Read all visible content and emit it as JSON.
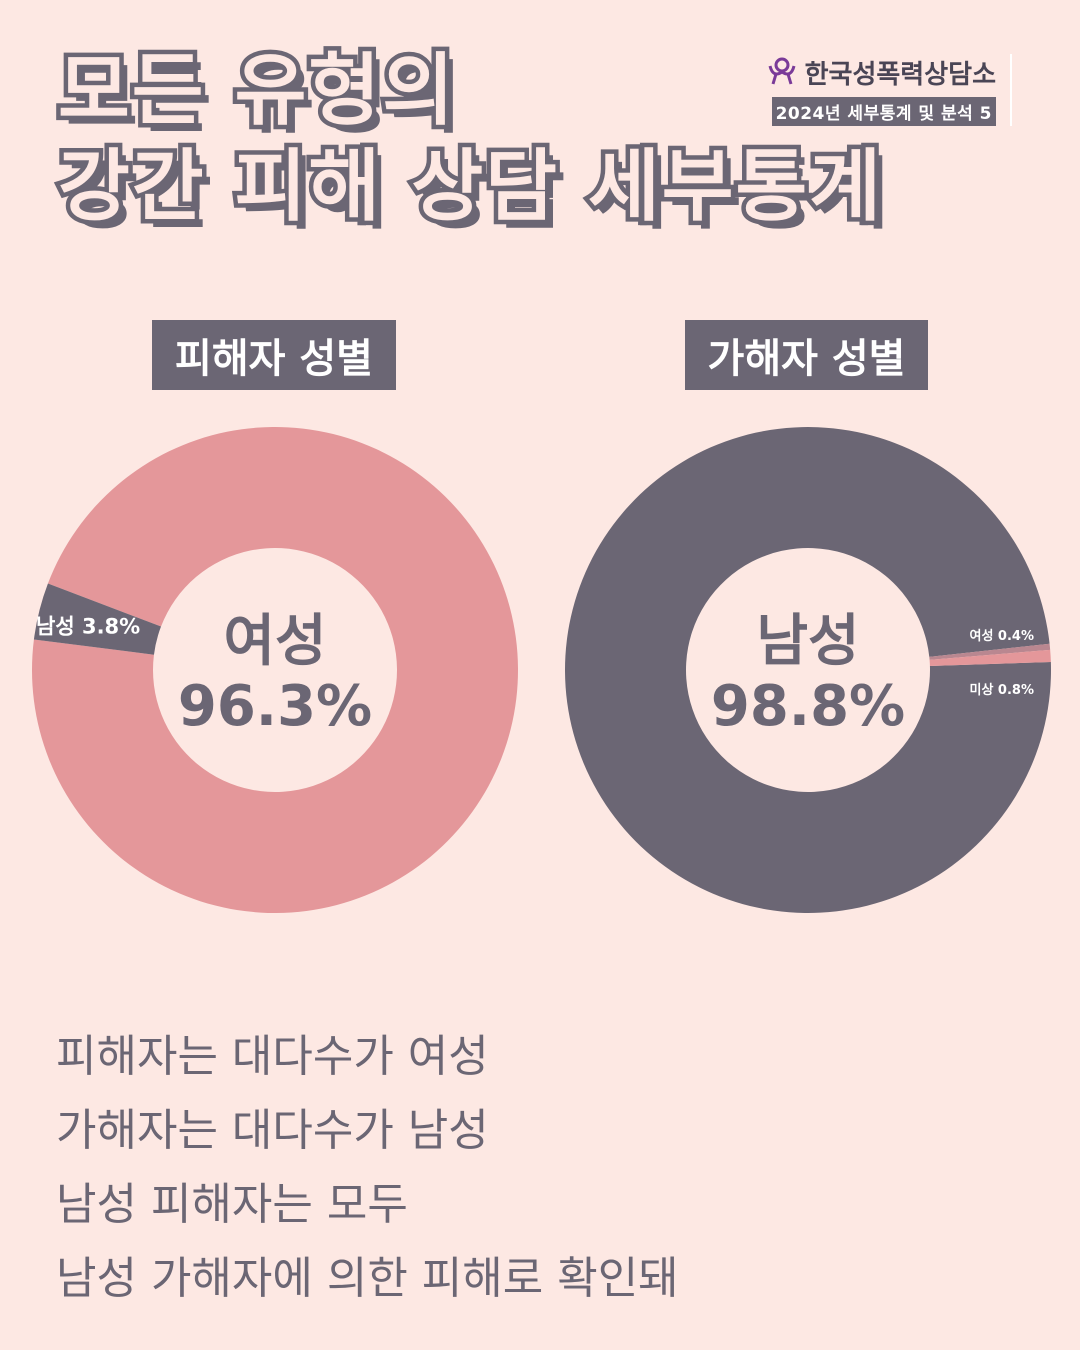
{
  "header": {
    "title_line1": "모든 유형의",
    "title_line2": "강간 피해 상담 세부통계"
  },
  "brand": {
    "logo_icon": "person-heart-icon",
    "name": "한국성폭력상담소",
    "subtitle": "2024년 세부통계 및 분석 5"
  },
  "captions": [
    "피해자는 대다수가 여성",
    "가해자는 대다수가 남성",
    "남성 피해자는 모두",
    "남성 가해자에 의한 피해로 확인돼"
  ],
  "colors": {
    "background": "#fde8e3",
    "female": "#e4979a",
    "male": "#6b6674",
    "unknown": "#e4979a",
    "text": "#6b6674"
  },
  "chart_data": [
    {
      "type": "pie",
      "title": "피해자 성별",
      "center_label": "여성",
      "center_value": "96.3%",
      "slices": [
        {
          "name": "여성",
          "value": 96.3,
          "label": "",
          "color": "#e4979a"
        },
        {
          "name": "남성",
          "value": 3.8,
          "label": "남성 3.8%",
          "color": "#6b6674"
        }
      ]
    },
    {
      "type": "pie",
      "title": "가해자 성별",
      "center_label": "남성",
      "center_value": "98.8%",
      "slices": [
        {
          "name": "남성",
          "value": 98.8,
          "label": "",
          "color": "#6b6674"
        },
        {
          "name": "여성",
          "value": 0.4,
          "label": "여성 0.4%",
          "color": "#b98790"
        },
        {
          "name": "미상",
          "value": 0.8,
          "label": "미상 0.8%",
          "color": "#e4979a"
        }
      ]
    }
  ]
}
